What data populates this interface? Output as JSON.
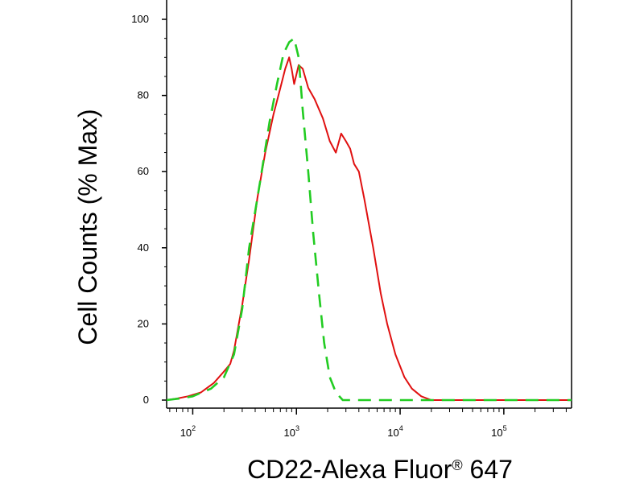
{
  "chart_data": {
    "type": "line",
    "title": "",
    "xlabel": "CD22-Alexa Fluor",
    "xlabel_registered": "®",
    "xlabel_suffix": " 647",
    "ylabel": "Cell Counts (% Max)",
    "x_scale": "log",
    "xlim": [
      56,
      450000
    ],
    "ylim": [
      0,
      100
    ],
    "y_ticks": [
      "0",
      "20",
      "40",
      "60",
      "80",
      "100"
    ],
    "x_ticks": [
      {
        "value": 100,
        "base": "10",
        "exp": "2"
      },
      {
        "value": 1000,
        "base": "10",
        "exp": "3"
      },
      {
        "value": 10000,
        "base": "10",
        "exp": "4"
      },
      {
        "value": 100000,
        "base": "10",
        "exp": "5"
      }
    ],
    "grid": false,
    "legend": "none",
    "series": [
      {
        "color": "#e01010",
        "style": "solid",
        "points": [
          [
            56,
            0
          ],
          [
            70,
            0.4
          ],
          [
            90,
            1
          ],
          [
            120,
            2
          ],
          [
            160,
            4.5
          ],
          [
            200,
            7.5
          ],
          [
            230,
            9.5
          ],
          [
            250,
            13
          ],
          [
            300,
            25
          ],
          [
            350,
            37
          ],
          [
            420,
            53
          ],
          [
            500,
            65
          ],
          [
            600,
            75
          ],
          [
            700,
            82
          ],
          [
            780,
            87
          ],
          [
            850,
            90
          ],
          [
            900,
            87
          ],
          [
            950,
            83
          ],
          [
            1050,
            88
          ],
          [
            1150,
            87
          ],
          [
            1300,
            82
          ],
          [
            1500,
            79
          ],
          [
            1800,
            74
          ],
          [
            2100,
            68
          ],
          [
            2400,
            65
          ],
          [
            2700,
            70
          ],
          [
            3000,
            68
          ],
          [
            3300,
            66
          ],
          [
            3600,
            62
          ],
          [
            4000,
            60
          ],
          [
            4500,
            53
          ],
          [
            5500,
            40
          ],
          [
            6500,
            28
          ],
          [
            7500,
            20
          ],
          [
            9000,
            12
          ],
          [
            11000,
            6
          ],
          [
            13000,
            3
          ],
          [
            16000,
            1
          ],
          [
            20000,
            0
          ],
          [
            450000,
            0
          ]
        ]
      },
      {
        "color": "#22cc22",
        "style": "dashed",
        "points": [
          [
            56,
            0
          ],
          [
            80,
            0.5
          ],
          [
            100,
            1
          ],
          [
            150,
            3
          ],
          [
            200,
            6
          ],
          [
            250,
            12
          ],
          [
            300,
            24
          ],
          [
            350,
            40
          ],
          [
            450,
            58
          ],
          [
            550,
            73
          ],
          [
            650,
            83
          ],
          [
            750,
            91
          ],
          [
            850,
            94
          ],
          [
            950,
            95
          ],
          [
            1050,
            90
          ],
          [
            1150,
            76
          ],
          [
            1300,
            60
          ],
          [
            1450,
            44
          ],
          [
            1650,
            28
          ],
          [
            1850,
            15
          ],
          [
            2100,
            6
          ],
          [
            2400,
            2
          ],
          [
            2800,
            0
          ],
          [
            450000,
            0
          ]
        ]
      }
    ]
  }
}
